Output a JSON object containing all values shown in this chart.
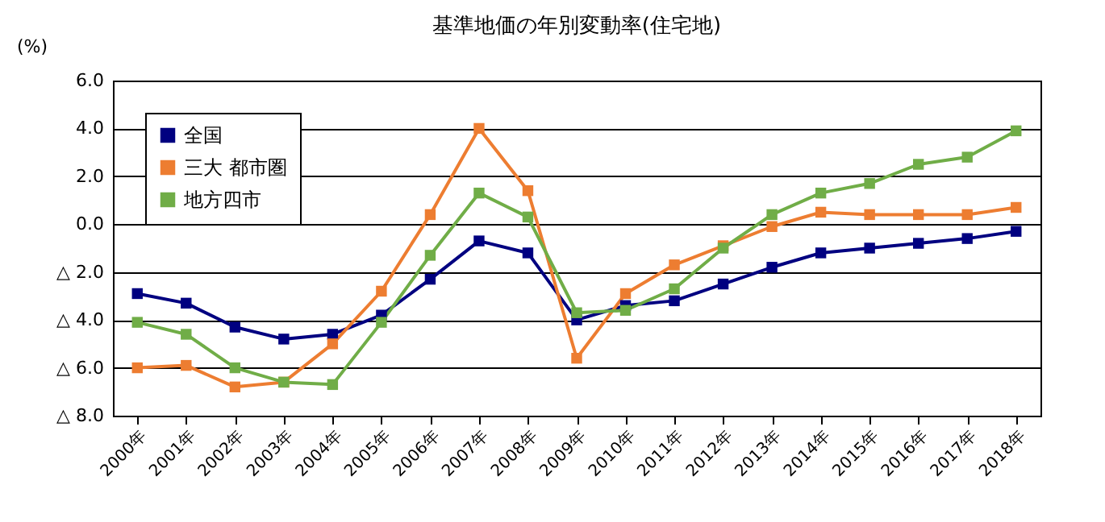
{
  "chart_data": {
    "type": "line",
    "title": "基準地価の年別変動率(住宅地)",
    "ylabel": "(%)",
    "categories": [
      "2000年",
      "2001年",
      "2002年",
      "2003年",
      "2004年",
      "2005年",
      "2006年",
      "2007年",
      "2008年",
      "2009年",
      "2010年",
      "2011年",
      "2012年",
      "2013年",
      "2014年",
      "2015年",
      "2016年",
      "2017年",
      "2018年"
    ],
    "series": [
      {
        "name": "全国",
        "color": "#000080",
        "values": [
          -2.9,
          -3.3,
          -4.3,
          -4.8,
          -4.6,
          -3.8,
          -2.3,
          -0.7,
          -1.2,
          -4.0,
          -3.4,
          -3.2,
          -2.5,
          -1.8,
          -1.2,
          -1.0,
          -0.8,
          -0.6,
          -0.3
        ]
      },
      {
        "name": "三大 都市圏",
        "color": "#ed7d31",
        "values": [
          -6.0,
          -5.9,
          -6.8,
          -6.6,
          -5.0,
          -2.8,
          0.4,
          4.0,
          1.4,
          -5.6,
          -2.9,
          -1.7,
          -0.9,
          -0.1,
          0.5,
          0.4,
          0.4,
          0.4,
          0.7
        ]
      },
      {
        "name": "地方四市",
        "color": "#70ad47",
        "values": [
          -4.1,
          -4.6,
          -6.0,
          -6.6,
          -6.7,
          -4.1,
          -1.3,
          1.3,
          0.3,
          -3.7,
          -3.6,
          -2.7,
          -1.0,
          0.4,
          1.3,
          1.7,
          2.5,
          2.8,
          3.9
        ]
      }
    ],
    "ylim": [
      -8,
      6
    ],
    "yticks": [
      {
        "value": -8,
        "label": "△ 8.0"
      },
      {
        "value": -6,
        "label": "△ 6.0"
      },
      {
        "value": -4,
        "label": "△ 4.0"
      },
      {
        "value": -2,
        "label": "△ 2.0"
      },
      {
        "value": 0,
        "label": "0.0"
      },
      {
        "value": 2,
        "label": "2.0"
      },
      {
        "value": 4,
        "label": "4.0"
      },
      {
        "value": 6,
        "label": "6.0"
      }
    ],
    "grid": "y",
    "legend": "top left",
    "marker": "square",
    "line_style": "solid"
  }
}
